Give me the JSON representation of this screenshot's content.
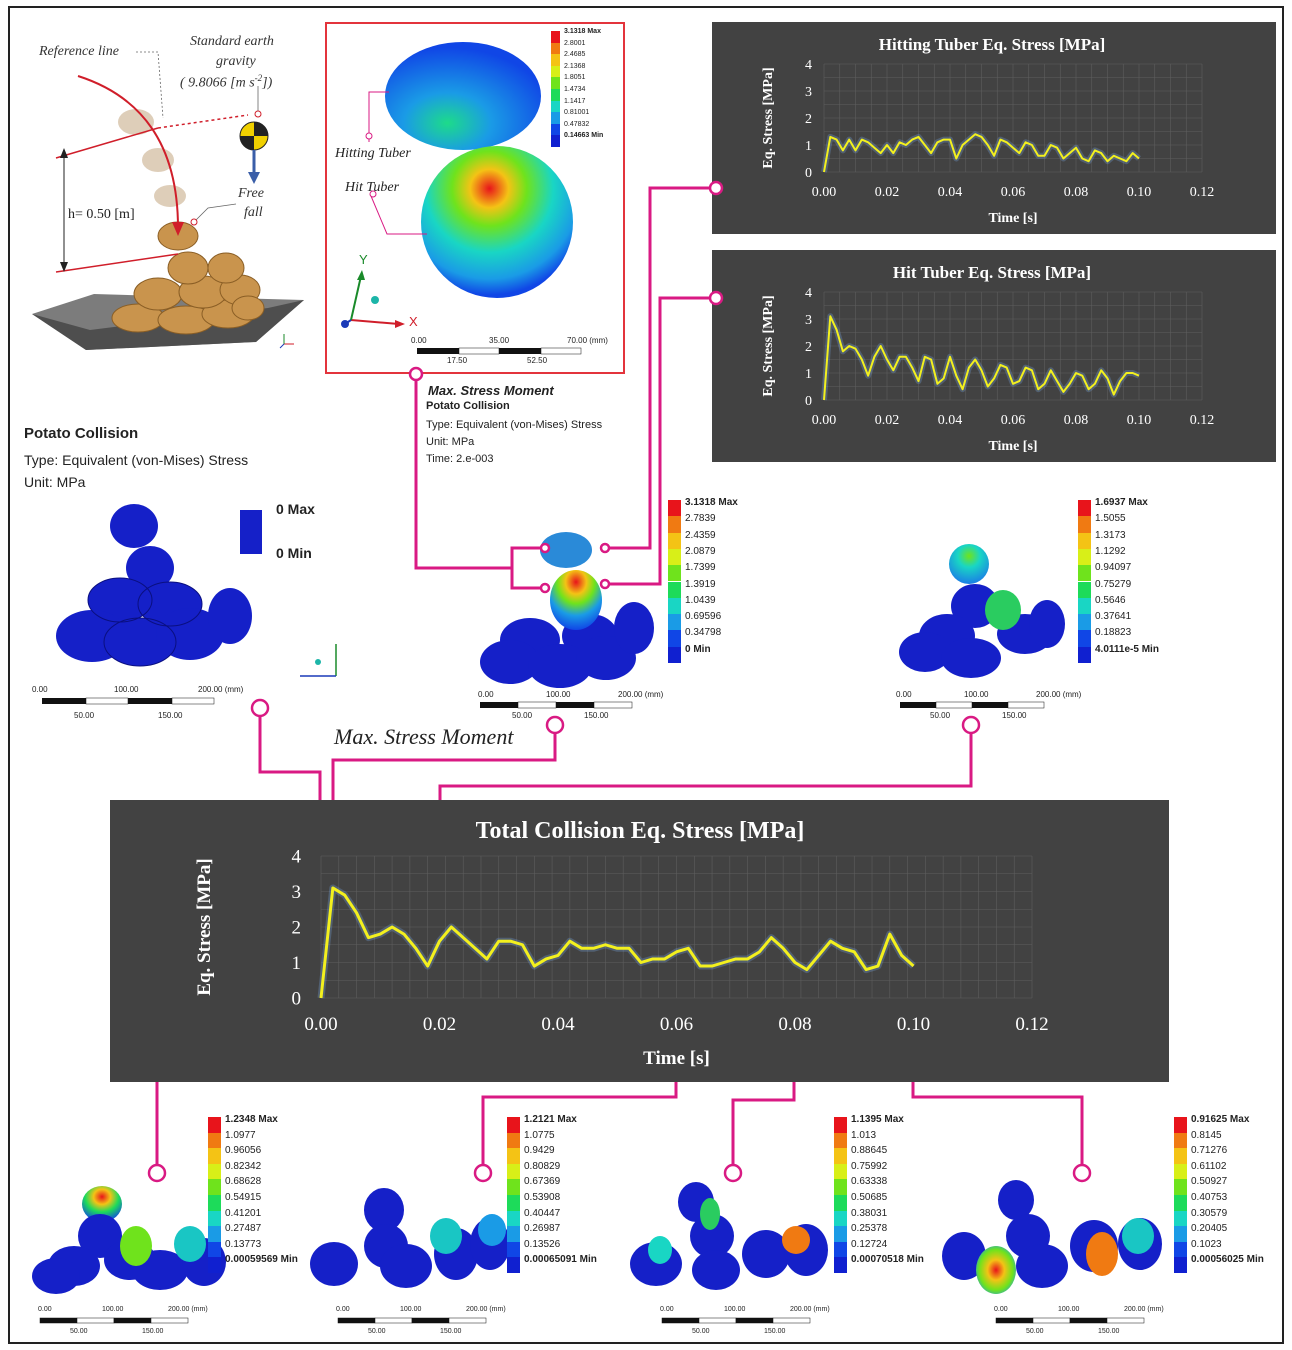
{
  "drop_diagram": {
    "reference_line": "Reference line",
    "gravity_line1": "Standard earth",
    "gravity_line2": "gravity",
    "gravity_value": "( 9.8066   [m s",
    "gravity_sup": "-2",
    "gravity_close": "])",
    "height": "h= 0.50 [m]",
    "free_fall_1": "Free",
    "free_fall_2": "fall"
  },
  "inset": {
    "hitting_tuber": "Hitting Tuber",
    "hit_tuber": "Hit Tuber",
    "axis_y": "Y",
    "axis_x": "X",
    "legend": [
      "3.1318 Max",
      "2.8001",
      "2.4685",
      "2.1368",
      "1.8051",
      "1.4734",
      "1.1417",
      "0.81001",
      "0.47832",
      "0.14663 Min"
    ],
    "scale_top": [
      "0.00",
      "35.00",
      "70.00 (mm)"
    ],
    "scale_bottom": [
      "17.50",
      "52.50"
    ]
  },
  "max_stress_info": {
    "title": "Max. Stress Moment",
    "subtitle": "Potato Collision",
    "type": "Type: Equivalent (von-Mises) Stress",
    "unit": "Unit: MPa",
    "time": "Time: 2.e-003"
  },
  "potato_collision_info": {
    "title": "Potato Collision",
    "type": "Type: Equivalent (von-Mises) Stress",
    "unit": "Unit: MPa",
    "max": "0 Max",
    "min": "0 Min"
  },
  "snap_center_legend": [
    "3.1318 Max",
    "2.7839",
    "2.4359",
    "2.0879",
    "1.7399",
    "1.3919",
    "1.0439",
    "0.69596",
    "0.34798",
    "0 Min"
  ],
  "snap_right_legend": [
    "1.6937 Max",
    "1.5055",
    "1.3173",
    "1.1292",
    "0.94097",
    "0.75279",
    "0.5646",
    "0.37641",
    "0.18823",
    "4.0111e-5 Min"
  ],
  "bottom_legends": [
    [
      "1.2348 Max",
      "1.0977",
      "0.96056",
      "0.82342",
      "0.68628",
      "0.54915",
      "0.41201",
      "0.27487",
      "0.13773",
      "0.00059569 Min"
    ],
    [
      "1.2121 Max",
      "1.0775",
      "0.9429",
      "0.80829",
      "0.67369",
      "0.53908",
      "0.40447",
      "0.26987",
      "0.13526",
      "0.00065091 Min"
    ],
    [
      "1.1395 Max",
      "1.013",
      "0.88645",
      "0.75992",
      "0.63338",
      "0.50685",
      "0.38031",
      "0.25378",
      "0.12724",
      "0.00070518 Min"
    ],
    [
      "0.91625 Max",
      "0.8145",
      "0.71276",
      "0.61102",
      "0.50927",
      "0.40753",
      "0.30579",
      "0.20405",
      "0.1023",
      "0.00056025 Min"
    ]
  ],
  "scale_bar": {
    "top": [
      "0.00",
      "100.00",
      "200.00 (mm)"
    ],
    "bottom": [
      "50.00",
      "150.00"
    ]
  },
  "max_stress_moment_label": "Max. Stress Moment",
  "legend_colors": [
    "#e8141b",
    "#f07a12",
    "#f4c315",
    "#d8ef18",
    "#6fe31c",
    "#1ddb5a",
    "#19d6c4",
    "#1a9be6",
    "#1046e6",
    "#1020d0"
  ],
  "chart_data": [
    {
      "type": "line",
      "title": "Hitting Tuber Eq. Stress [MPa]",
      "xlabel": "Time [s]",
      "ylabel": "Eq. Stress [MPa]",
      "xlim": [
        0,
        0.12
      ],
      "ylim": [
        0,
        4
      ],
      "xticks": [
        "0.00",
        "0.02",
        "0.04",
        "0.06",
        "0.08",
        "0.10",
        "0.12"
      ],
      "yticks": [
        "0",
        "1",
        "2",
        "3",
        "4"
      ],
      "x": [
        0,
        0.002,
        0.004,
        0.006,
        0.008,
        0.01,
        0.012,
        0.014,
        0.016,
        0.018,
        0.02,
        0.022,
        0.024,
        0.026,
        0.028,
        0.03,
        0.032,
        0.034,
        0.036,
        0.038,
        0.04,
        0.042,
        0.044,
        0.046,
        0.048,
        0.05,
        0.052,
        0.054,
        0.056,
        0.058,
        0.06,
        0.062,
        0.064,
        0.066,
        0.068,
        0.07,
        0.072,
        0.074,
        0.076,
        0.078,
        0.08,
        0.082,
        0.084,
        0.086,
        0.088,
        0.09,
        0.092,
        0.094,
        0.096,
        0.098,
        0.1
      ],
      "series": [
        {
          "values": [
            0,
            1.3,
            1.2,
            0.8,
            1.2,
            0.8,
            1.2,
            1.1,
            0.9,
            0.7,
            1.0,
            0.7,
            1.1,
            1.0,
            1.2,
            1.3,
            1.0,
            0.7,
            1.1,
            1.2,
            1.2,
            0.5,
            1.0,
            1.2,
            1.4,
            1.3,
            1.0,
            0.6,
            1.2,
            1.1,
            0.9,
            0.7,
            1.1,
            1.0,
            0.6,
            0.6,
            1.0,
            0.9,
            0.5,
            0.7,
            0.9,
            0.5,
            0.4,
            0.8,
            0.7,
            0.4,
            0.6,
            0.5,
            0.4,
            0.7,
            0.5
          ]
        }
      ],
      "color": "#f3f01e"
    },
    {
      "type": "line",
      "title": "Hit Tuber Eq. Stress [MPa]",
      "xlabel": "Time [s]",
      "ylabel": "Eq. Stress [MPa]",
      "xlim": [
        0,
        0.12
      ],
      "ylim": [
        0,
        4
      ],
      "xticks": [
        "0.00",
        "0.02",
        "0.04",
        "0.06",
        "0.08",
        "0.10",
        "0.12"
      ],
      "yticks": [
        "0",
        "1",
        "2",
        "3",
        "4"
      ],
      "x": [
        0,
        0.002,
        0.004,
        0.006,
        0.008,
        0.01,
        0.012,
        0.014,
        0.016,
        0.018,
        0.02,
        0.022,
        0.024,
        0.026,
        0.028,
        0.03,
        0.032,
        0.034,
        0.036,
        0.038,
        0.04,
        0.042,
        0.044,
        0.046,
        0.048,
        0.05,
        0.052,
        0.054,
        0.056,
        0.058,
        0.06,
        0.062,
        0.064,
        0.066,
        0.068,
        0.07,
        0.072,
        0.074,
        0.076,
        0.078,
        0.08,
        0.082,
        0.084,
        0.086,
        0.088,
        0.09,
        0.092,
        0.094,
        0.096,
        0.098,
        0.1
      ],
      "series": [
        {
          "values": [
            0,
            3.1,
            2.6,
            1.8,
            2.0,
            1.9,
            1.5,
            0.9,
            1.6,
            2.0,
            1.5,
            1.1,
            1.6,
            1.6,
            1.2,
            0.7,
            1.6,
            1.5,
            0.6,
            0.8,
            1.6,
            0.9,
            0.4,
            1.2,
            1.5,
            1.1,
            0.5,
            0.8,
            1.3,
            1.2,
            0.6,
            0.7,
            1.2,
            1.1,
            0.4,
            0.6,
            1.1,
            0.7,
            0.3,
            0.6,
            1.0,
            0.9,
            0.4,
            0.6,
            1.1,
            0.8,
            0.2,
            0.7,
            1.0,
            1.0,
            0.9
          ]
        }
      ],
      "color": "#f3f01e"
    },
    {
      "type": "line",
      "title": "Total Collision Eq. Stress [MPa]",
      "xlabel": "Time [s]",
      "ylabel": "Eq. Stress [MPa]",
      "xlim": [
        0,
        0.12
      ],
      "ylim": [
        0,
        4
      ],
      "xticks": [
        "0.00",
        "0.02",
        "0.04",
        "0.06",
        "0.08",
        "0.10",
        "0.12"
      ],
      "yticks": [
        "0",
        "1",
        "2",
        "3",
        "4"
      ],
      "x": [
        0,
        0.002,
        0.004,
        0.006,
        0.008,
        0.01,
        0.012,
        0.014,
        0.016,
        0.018,
        0.02,
        0.022,
        0.024,
        0.026,
        0.028,
        0.03,
        0.032,
        0.034,
        0.036,
        0.038,
        0.04,
        0.042,
        0.044,
        0.046,
        0.048,
        0.05,
        0.052,
        0.054,
        0.056,
        0.058,
        0.06,
        0.062,
        0.064,
        0.066,
        0.068,
        0.07,
        0.072,
        0.074,
        0.076,
        0.078,
        0.08,
        0.082,
        0.084,
        0.086,
        0.088,
        0.09,
        0.092,
        0.094,
        0.096,
        0.098,
        0.1
      ],
      "series": [
        {
          "values": [
            0,
            3.1,
            2.9,
            2.4,
            1.7,
            1.8,
            2.0,
            1.8,
            1.4,
            0.9,
            1.6,
            2.0,
            1.7,
            1.4,
            1.1,
            1.6,
            1.6,
            1.5,
            0.9,
            1.1,
            1.2,
            1.6,
            1.4,
            1.4,
            1.5,
            1.4,
            1.4,
            1.0,
            1.1,
            1.1,
            1.3,
            1.4,
            0.9,
            0.9,
            1.0,
            1.1,
            1.1,
            1.3,
            1.7,
            1.4,
            1.0,
            0.8,
            1.2,
            1.6,
            1.4,
            1.3,
            0.8,
            0.9,
            1.8,
            1.2,
            0.9
          ]
        }
      ],
      "color": "#f3f01e"
    }
  ]
}
